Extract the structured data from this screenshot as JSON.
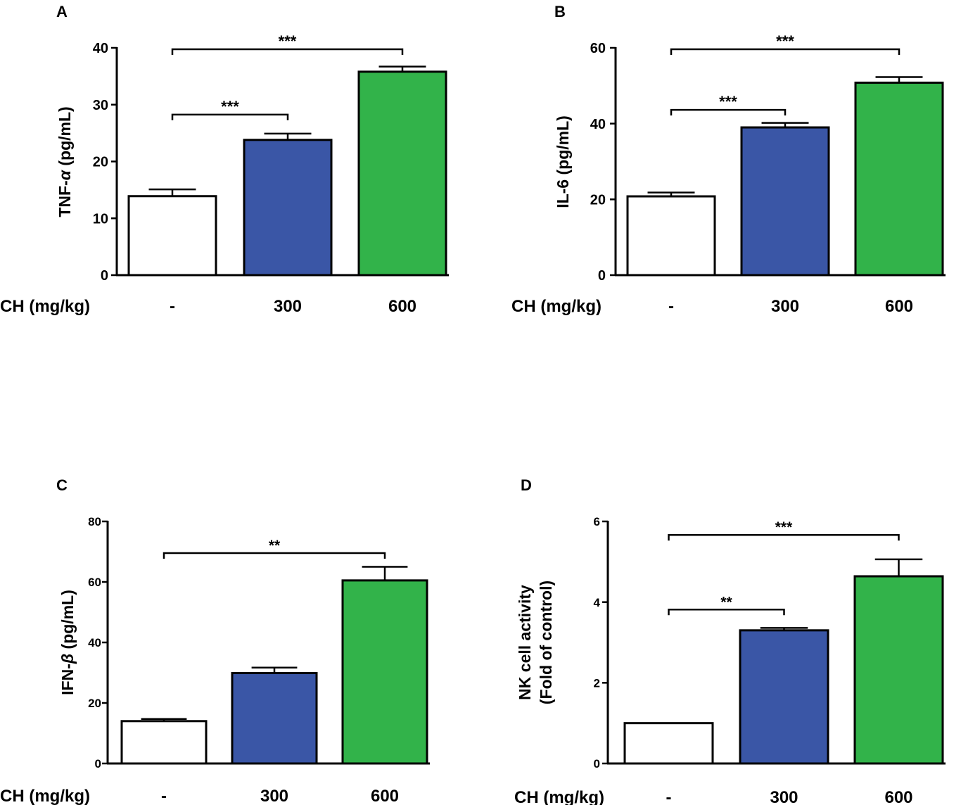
{
  "figure": {
    "x_caption": "CH (mg/kg)",
    "colors": {
      "control": "#ffffff",
      "low": "#3a56a6",
      "high": "#32b34a",
      "stroke": "#000000"
    }
  },
  "chart_data": [
    {
      "panel": "A",
      "type": "bar",
      "ylabel": "TNF-α (pg/mL)",
      "ylabel_parts": [
        "TNF-",
        "α",
        " (pg/mL)"
      ],
      "categories": [
        "-",
        "300",
        "600"
      ],
      "values": [
        13.9,
        23.8,
        35.8
      ],
      "errors": [
        1.2,
        1.1,
        0.9
      ],
      "ylim": [
        0,
        40
      ],
      "yticks": [
        0,
        10,
        20,
        30,
        40
      ],
      "significance": [
        {
          "from": 0,
          "to": 1,
          "label": "***",
          "y": 28.5
        },
        {
          "from": 0,
          "to": 2,
          "label": "***",
          "y": 40
        }
      ]
    },
    {
      "panel": "B",
      "type": "bar",
      "ylabel": "IL-6 (pg/mL)",
      "ylabel_parts": [
        "IL-6 (pg/mL)"
      ],
      "categories": [
        "-",
        "300",
        "600"
      ],
      "values": [
        20.8,
        39.0,
        50.8
      ],
      "errors": [
        1.0,
        1.2,
        1.5
      ],
      "ylim": [
        0,
        60
      ],
      "yticks": [
        0,
        20,
        40,
        60
      ],
      "significance": [
        {
          "from": 0,
          "to": 1,
          "label": "***",
          "y": 44
        },
        {
          "from": 0,
          "to": 2,
          "label": "***",
          "y": 60
        }
      ]
    },
    {
      "panel": "C",
      "type": "bar",
      "ylabel": "IFN-β (pg/mL)",
      "ylabel_parts": [
        "IFN-",
        "β",
        " (pg/mL)"
      ],
      "categories": [
        "-",
        "300",
        "600"
      ],
      "values": [
        14.0,
        29.9,
        60.5
      ],
      "errors": [
        0.7,
        1.8,
        4.5
      ],
      "ylim": [
        0,
        80
      ],
      "yticks": [
        0,
        20,
        40,
        60,
        80
      ],
      "significance": [
        {
          "from": 0,
          "to": 2,
          "label": "**",
          "y": 70
        }
      ]
    },
    {
      "panel": "D",
      "type": "bar",
      "ylabel": "NK cell activity (Fold of control)",
      "ylabel_lines": [
        "NK cell activity",
        "(Fold of control)"
      ],
      "categories": [
        "-",
        "300",
        "600"
      ],
      "values": [
        1.0,
        3.3,
        4.64
      ],
      "errors": [
        0,
        0.06,
        0.42
      ],
      "ylim": [
        0,
        6
      ],
      "yticks": [
        0,
        2,
        4,
        6
      ],
      "significance": [
        {
          "from": 0,
          "to": 1,
          "label": "**",
          "y": 3.85
        },
        {
          "from": 0,
          "to": 2,
          "label": "***",
          "y": 5.7
        }
      ]
    }
  ]
}
